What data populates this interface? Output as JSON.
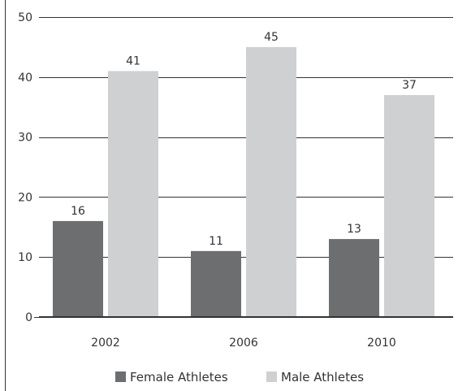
{
  "chart_data": {
    "type": "bar",
    "categories": [
      "2002",
      "2006",
      "2010"
    ],
    "series": [
      {
        "name": "Female Athletes",
        "values": [
          16,
          11,
          13
        ],
        "color": "#6d6e70"
      },
      {
        "name": "Male Athletes",
        "values": [
          41,
          45,
          37
        ],
        "color": "#cfd0d2"
      }
    ],
    "ylim": [
      0,
      50
    ],
    "yticks": [
      0,
      10,
      20,
      30,
      40,
      50
    ],
    "title": "",
    "xlabel": "",
    "ylabel": "",
    "grid": true,
    "legend": "bottom-center",
    "colors": {
      "grid": "#333333",
      "axis": "#333333",
      "text": "#333333"
    }
  }
}
